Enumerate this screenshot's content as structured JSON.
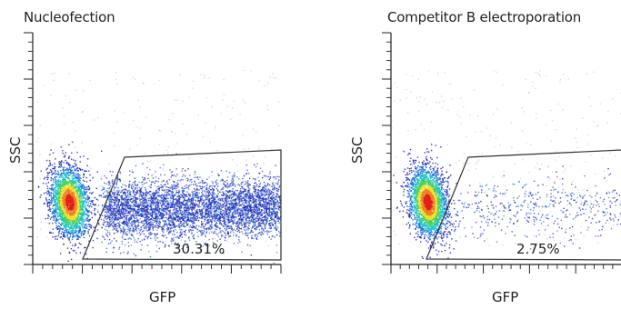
{
  "chart_data": [
    {
      "type": "scatter",
      "title": "Nucleofection",
      "xlabel": "GFP",
      "ylabel": "SSC",
      "gate_percentage": "30.31%",
      "gate_fraction": 0.3031,
      "xscale": "log",
      "yscale": "log",
      "grid": false,
      "colormap": [
        "#1e28b4",
        "#1a6fd8",
        "#17c2c8",
        "#48d060",
        "#f0e020",
        "#f08020",
        "#e02018"
      ]
    },
    {
      "type": "scatter",
      "title": "Competitor B electroporation",
      "xlabel": "GFP",
      "ylabel": "SSC",
      "gate_percentage": "2.75%",
      "gate_fraction": 0.0275,
      "xscale": "log",
      "yscale": "log",
      "grid": false,
      "colormap": [
        "#1e28b4",
        "#1a6fd8",
        "#17c2c8",
        "#48d060",
        "#f0e020",
        "#f08020",
        "#e02018"
      ]
    }
  ]
}
